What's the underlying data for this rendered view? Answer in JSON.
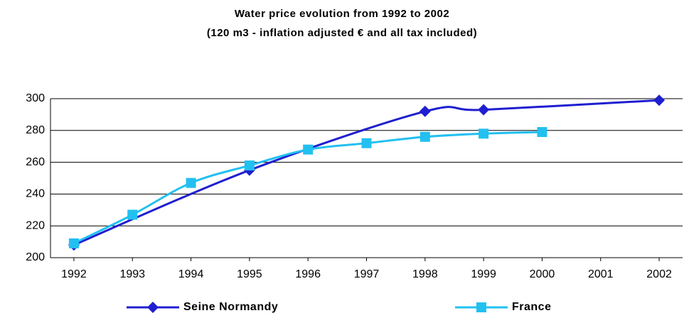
{
  "chart_data": {
    "type": "line",
    "title": "Water price evolution from 1992 to 2002",
    "subtitle": "(120 m3 - inflation adjusted € and all tax included)",
    "xlim": [
      1991.6,
      2002.4
    ],
    "xticks": [
      1992,
      1993,
      1994,
      1995,
      1996,
      1997,
      1998,
      1999,
      2000,
      2001,
      2002
    ],
    "ylim": [
      200,
      300
    ],
    "yticks": [
      200,
      220,
      240,
      260,
      280,
      300
    ],
    "grid": true,
    "legend": "bottom",
    "series": [
      {
        "name": "Seine Normandy",
        "color": "#1f1fd0",
        "marker": "diamond",
        "x": [
          1992,
          1995,
          1998,
          1999,
          2002
        ],
        "values": [
          208,
          255,
          292,
          293,
          299
        ]
      },
      {
        "name": "France",
        "color": "#22c0f0",
        "marker": "square",
        "x": [
          1992,
          1993,
          1994,
          1995,
          1996,
          1997,
          1998,
          1999,
          2000
        ],
        "values": [
          209,
          227,
          247,
          258,
          268,
          272,
          276,
          278,
          279
        ]
      }
    ]
  }
}
